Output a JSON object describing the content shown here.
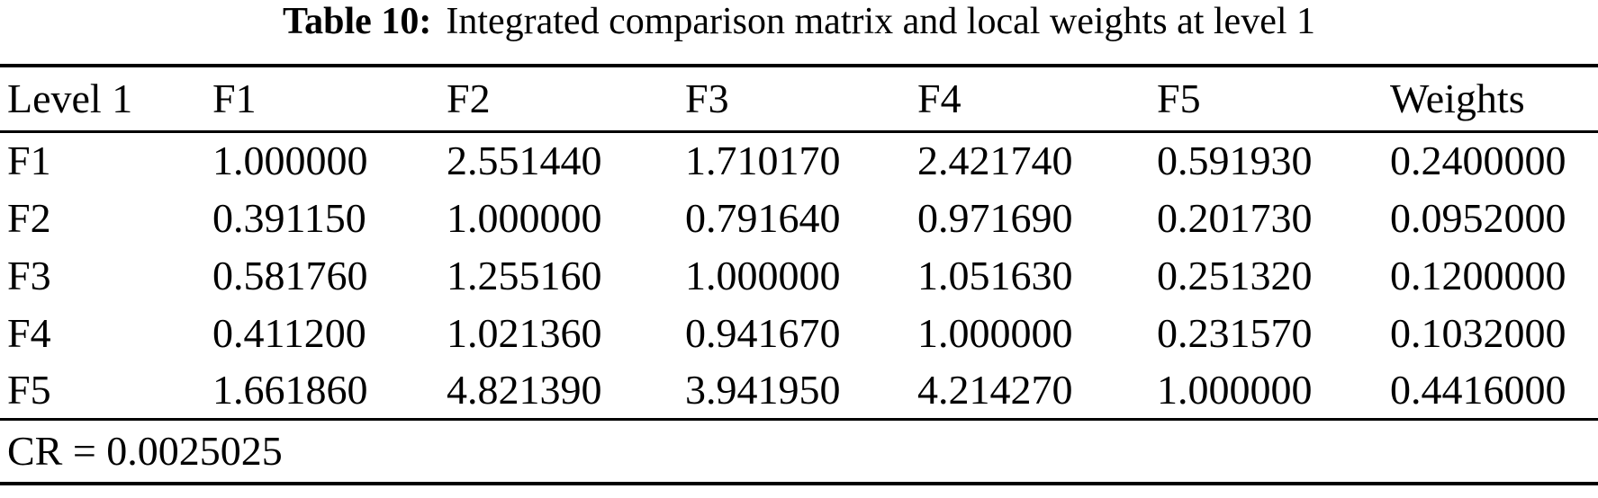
{
  "caption": {
    "label": "Table 10:",
    "title": "Integrated comparison matrix and local weights at level 1"
  },
  "table": {
    "headers": [
      "Level 1",
      "F1",
      "F2",
      "F3",
      "F4",
      "F5",
      "Weights"
    ],
    "rows": [
      {
        "label": "F1",
        "values": [
          "1.000000",
          "2.551440",
          "1.710170",
          "2.421740",
          "0.591930",
          "0.2400000"
        ]
      },
      {
        "label": "F2",
        "values": [
          "0.391150",
          "1.000000",
          "0.791640",
          "0.971690",
          "0.201730",
          "0.0952000"
        ]
      },
      {
        "label": "F3",
        "values": [
          "0.581760",
          "1.255160",
          "1.000000",
          "1.051630",
          "0.251320",
          "0.1200000"
        ]
      },
      {
        "label": "F4",
        "values": [
          "0.411200",
          "1.021360",
          "0.941670",
          "1.000000",
          "0.231570",
          "0.1032000"
        ]
      },
      {
        "label": "F5",
        "values": [
          "1.661860",
          "4.821390",
          "3.941950",
          "4.214270",
          "1.000000",
          "0.4416000"
        ]
      }
    ],
    "footnote": "CR = 0.0025025"
  },
  "chart_data": {
    "type": "table",
    "title": "Table 10: Integrated comparison matrix and local weights at level 1",
    "columns": [
      "Level 1",
      "F1",
      "F2",
      "F3",
      "F4",
      "F5",
      "Weights"
    ],
    "rows": [
      [
        "F1",
        1.0,
        2.55144,
        1.71017,
        2.42174,
        0.59193,
        0.24
      ],
      [
        "F2",
        0.39115,
        1.0,
        0.79164,
        0.97169,
        0.20173,
        0.0952
      ],
      [
        "F3",
        0.58176,
        1.25516,
        1.0,
        1.05163,
        0.25132,
        0.12
      ],
      [
        "F4",
        0.4112,
        1.02136,
        0.94167,
        1.0,
        0.23157,
        0.1032
      ],
      [
        "F5",
        1.66186,
        4.82139,
        3.94195,
        4.21427,
        1.0,
        0.4416
      ]
    ],
    "consistency_ratio": 0.0025025
  },
  "colors": {
    "text": "#000000",
    "background": "#ffffff",
    "rule": "#000000"
  }
}
